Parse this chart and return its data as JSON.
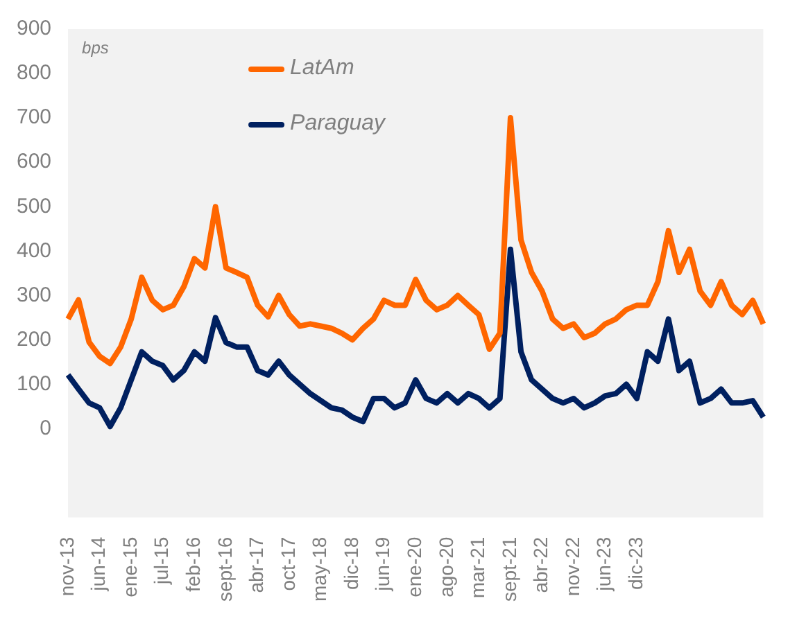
{
  "chart_data": {
    "type": "line",
    "annotations": [
      "bps"
    ],
    "categories": [
      "nov-13",
      null,
      null,
      "jun-14",
      null,
      null,
      "ene-15",
      null,
      null,
      "jul-15",
      null,
      null,
      "feb-16",
      null,
      null,
      "sept-16",
      null,
      null,
      "abr-17",
      null,
      null,
      "oct-17",
      null,
      null,
      "may-18",
      null,
      null,
      "dic-18",
      null,
      null,
      "jun-19",
      null,
      null,
      "ene-20",
      null,
      null,
      "ago-20",
      null,
      null,
      "mar-21",
      null,
      null,
      "sept-21",
      null,
      null,
      "abr-22",
      null,
      null,
      "nov-22",
      null,
      null,
      "jun-23",
      null,
      null,
      "dic-23",
      null,
      null,
      null,
      null,
      null,
      null,
      null,
      null,
      null,
      null,
      null,
      null
    ],
    "series": [
      {
        "name": "LatAm",
        "color": "#ff6600",
        "values": [
          247,
          290,
          195,
          163,
          147,
          184,
          247,
          341,
          289,
          268,
          278,
          320,
          383,
          362,
          500,
          362,
          352,
          341,
          278,
          252,
          300,
          257,
          231,
          236,
          231,
          226,
          215,
          200,
          226,
          247,
          289,
          278,
          278,
          336,
          289,
          268,
          278,
          300,
          278,
          257,
          179,
          215,
          700,
          425,
          352,
          310,
          247,
          226,
          236,
          205,
          215,
          236,
          247,
          268,
          278,
          278,
          331,
          446,
          352,
          404,
          310,
          278,
          331,
          278,
          257,
          289,
          236
        ]
      },
      {
        "name": "Paraguay",
        "color": "#002060",
        "values": [
          121,
          89,
          58,
          47,
          5,
          47,
          110,
          173,
          152,
          142,
          110,
          131,
          173,
          152,
          250,
          194,
          184,
          184,
          131,
          121,
          152,
          121,
          100,
          79,
          63,
          47,
          42,
          26,
          16,
          68,
          68,
          47,
          58,
          110,
          68,
          58,
          79,
          58,
          79,
          68,
          47,
          68,
          404,
          173,
          110,
          89,
          68,
          58,
          68,
          47,
          58,
          74,
          79,
          100,
          68,
          173,
          152,
          247,
          131,
          152,
          58,
          68,
          89,
          58,
          58,
          63,
          26
        ]
      }
    ],
    "ylim": [
      -200,
      900
    ],
    "yticks": [
      0,
      100,
      200,
      300,
      400,
      500,
      600,
      700,
      800,
      900
    ],
    "legend": "top",
    "marker": "none",
    "line_style": "solid"
  }
}
